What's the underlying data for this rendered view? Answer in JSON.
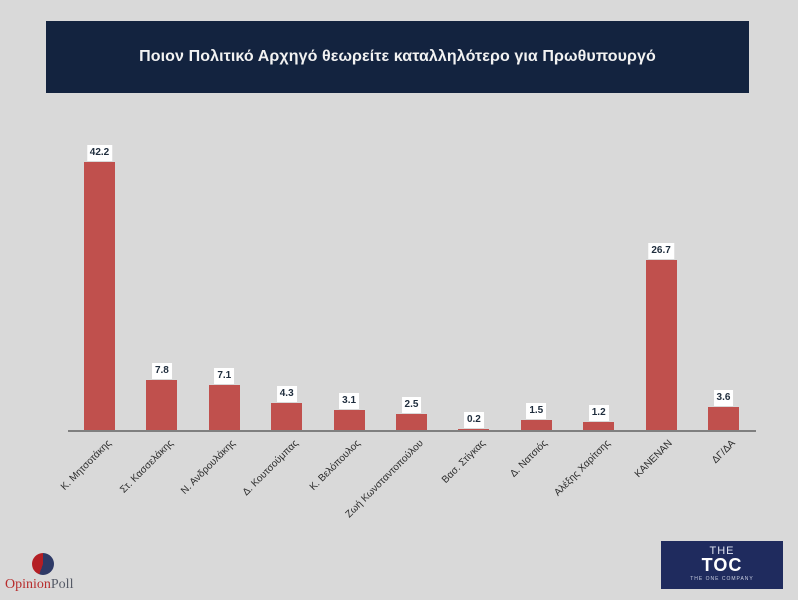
{
  "header": {
    "title": "Ποιον Πολιτικό Αρχηγό θεωρείτε καταλληλότερο για Πρωθυπουργό"
  },
  "colors": {
    "title_bg": "#13233f",
    "bar": "#c0504d",
    "background": "#d9d9d9",
    "axis": "#7f7f7f"
  },
  "chart_data": {
    "type": "bar",
    "title": "Ποιον Πολιτικό Αρχηγό θεωρείτε καταλληλότερο για Πρωθυπουργό",
    "xlabel": "",
    "ylabel": "",
    "categories": [
      "Κ. Μητσοτάκης",
      "Στ. Κασσελάκης",
      "Ν. Ανδρουλάκης",
      "Δ. Κουτσούμπας",
      "Κ. Βελόπουλος",
      "Ζωή Κωνσταντοπούλου",
      "Βασ. Στίγκας",
      "Δ. Νατσιός",
      "Αλέξης Χαρίτσης",
      "ΚΑΝΕΝΑΝ",
      "ΔΓ/ΔΑ"
    ],
    "values": [
      42.2,
      7.8,
      7.1,
      4.3,
      3.1,
      2.5,
      0.2,
      1.5,
      1.2,
      26.7,
      3.6
    ],
    "value_labels": [
      "42.2",
      "7.8",
      "7.1",
      "4.3",
      "3.1",
      "2.5",
      "0.2",
      "1.5",
      "1.2",
      "26.7",
      "3.6"
    ],
    "ylim": [
      0,
      45
    ],
    "grid": false,
    "legend": null,
    "data_labels": true
  },
  "logos": {
    "left": {
      "part1": "Opinion",
      "part2": "Poll"
    },
    "right": {
      "line1": "THE",
      "line2": "TOC",
      "line3": "THE ONE COMPANY"
    }
  }
}
